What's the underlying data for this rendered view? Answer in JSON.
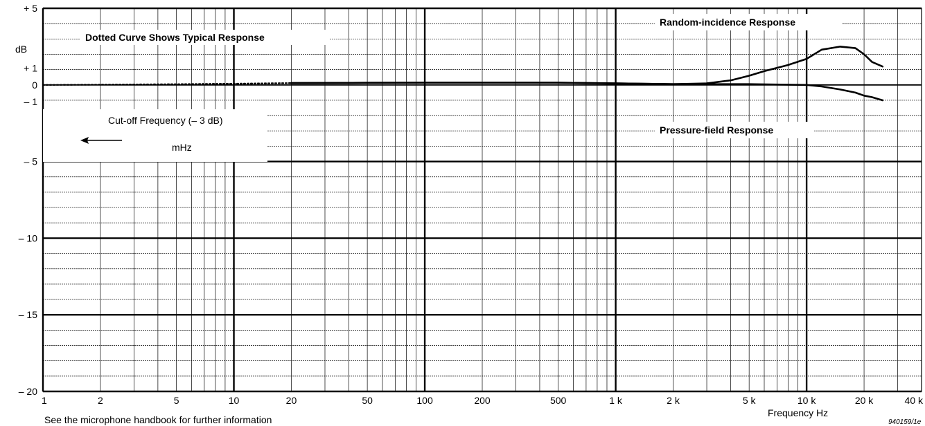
{
  "chart_data": {
    "type": "line",
    "title": "",
    "xlabel": "Frequency Hz",
    "ylabel": "dB",
    "x_scale": "log",
    "xlim": [
      1,
      40000
    ],
    "ylim": [
      -20,
      5
    ],
    "grid": true,
    "x_ticks": [
      {
        "value": 1,
        "label": "1"
      },
      {
        "value": 2,
        "label": "2"
      },
      {
        "value": 5,
        "label": "5"
      },
      {
        "value": 10,
        "label": "10"
      },
      {
        "value": 20,
        "label": "20"
      },
      {
        "value": 50,
        "label": "50"
      },
      {
        "value": 100,
        "label": "100"
      },
      {
        "value": 200,
        "label": "200"
      },
      {
        "value": 500,
        "label": "500"
      },
      {
        "value": 1000,
        "label": "1 k"
      },
      {
        "value": 2000,
        "label": "2 k"
      },
      {
        "value": 5000,
        "label": "5 k"
      },
      {
        "value": 10000,
        "label": "10 k"
      },
      {
        "value": 20000,
        "label": "20 k"
      },
      {
        "value": 40000,
        "label": "40 k"
      }
    ],
    "y_ticks": [
      {
        "value": 5,
        "label": "+ 5"
      },
      {
        "value": 1,
        "label": "+ 1"
      },
      {
        "value": 0,
        "label": "0"
      },
      {
        "value": -1,
        "label": "– 1"
      },
      {
        "value": -5,
        "label": "– 5"
      },
      {
        "value": -10,
        "label": "– 10"
      },
      {
        "value": -15,
        "label": "– 15"
      },
      {
        "value": -20,
        "label": "– 20"
      }
    ],
    "series": [
      {
        "name": "Dotted Curve Shows Typical Response",
        "style": "dotted",
        "x": [
          1,
          2,
          5,
          10,
          20
        ],
        "y": [
          0.0,
          0.02,
          0.05,
          0.08,
          0.12
        ]
      },
      {
        "name": "Random-incidence Response",
        "style": "solid",
        "x": [
          20,
          50,
          100,
          200,
          500,
          1000,
          2000,
          3000,
          4000,
          5000,
          6000,
          8000,
          10000,
          12000,
          15000,
          18000,
          20000,
          22000,
          25000
        ],
        "y": [
          0.12,
          0.14,
          0.15,
          0.15,
          0.15,
          0.1,
          0.05,
          0.1,
          0.3,
          0.6,
          0.9,
          1.3,
          1.7,
          2.3,
          2.5,
          2.4,
          2.0,
          1.5,
          1.2
        ]
      },
      {
        "name": "Pressure-field Response",
        "style": "solid",
        "x": [
          20,
          50,
          100,
          200,
          500,
          1000,
          2000,
          5000,
          10000,
          12000,
          15000,
          18000,
          20000,
          22000,
          25000
        ],
        "y": [
          0.12,
          0.14,
          0.15,
          0.15,
          0.15,
          0.1,
          0.05,
          0.05,
          0.0,
          -0.1,
          -0.3,
          -0.5,
          -0.7,
          -0.8,
          -1.0
        ]
      }
    ],
    "annotations": {
      "random_label": "Random-incidence Response",
      "pressure_label": "Pressure-field Response",
      "dotted_label": "Dotted Curve Shows Typical Response",
      "cutoff_label": "Cut-off Frequency (– 3 dB)",
      "cutoff_unit": "mHz"
    },
    "footer_note": "See the microphone handbook for further information",
    "reference_code": "940159/1e"
  },
  "colors": {
    "grid": "#000000",
    "curve": "#000000",
    "background": "#ffffff"
  }
}
